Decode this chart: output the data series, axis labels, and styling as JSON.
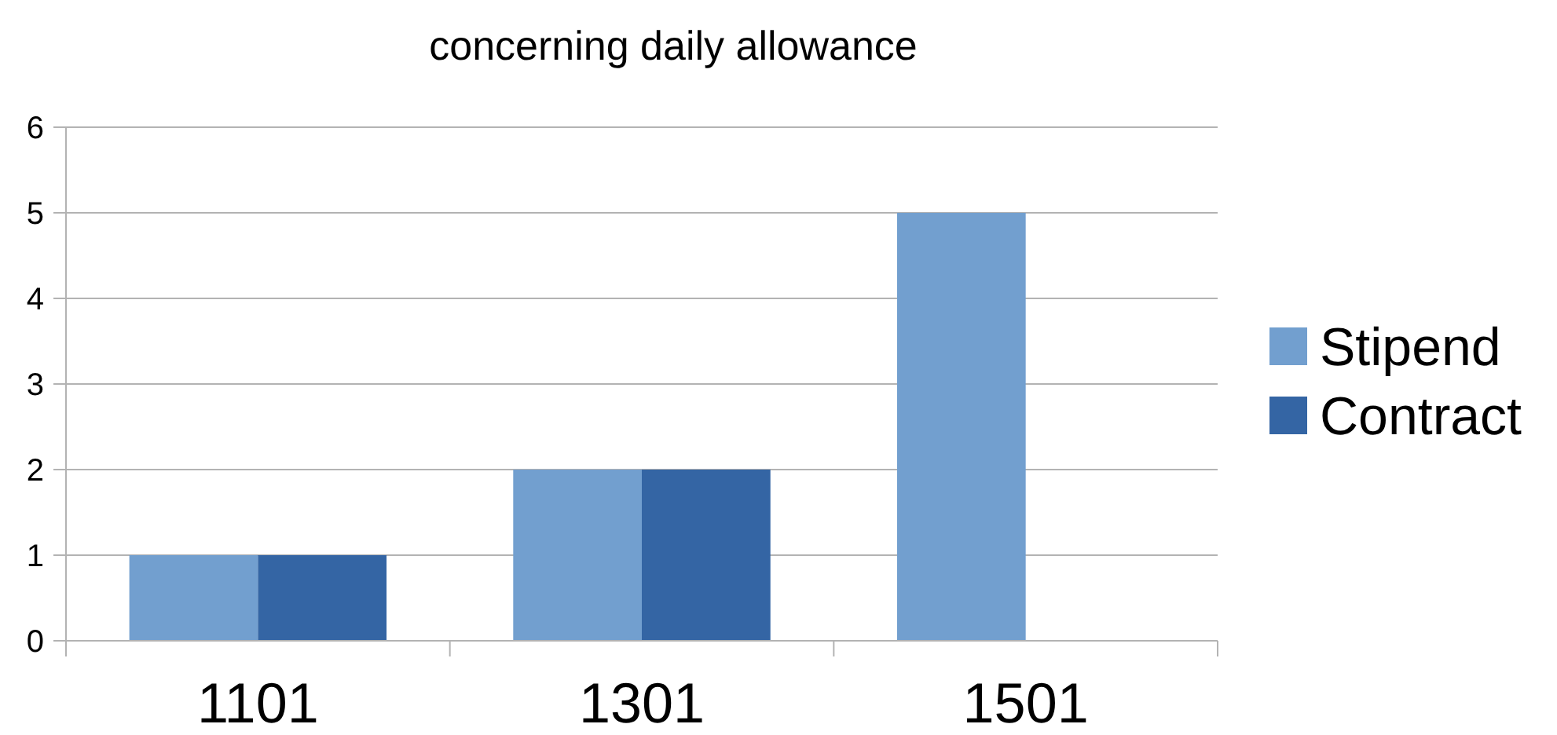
{
  "chart_data": {
    "type": "bar",
    "title": "concerning daily allowance",
    "categories": [
      "1101",
      "1301",
      "1501"
    ],
    "series": [
      {
        "name": "Stipend",
        "color": "#729fcf",
        "values": [
          1,
          2,
          5
        ]
      },
      {
        "name": "Contract",
        "color": "#3465a4",
        "values": [
          1,
          2,
          0
        ]
      }
    ],
    "ylim": [
      0,
      6
    ],
    "yticks": [
      0,
      1,
      2,
      3,
      4,
      5,
      6
    ],
    "grid": "y",
    "legend": "right"
  }
}
